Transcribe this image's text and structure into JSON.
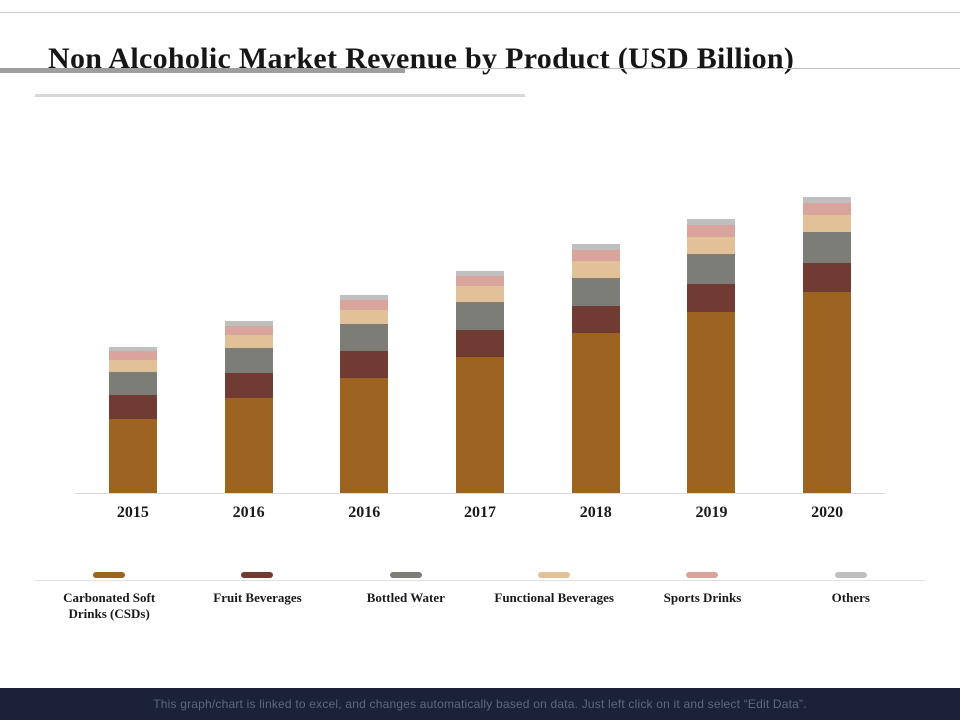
{
  "title": "Non Alcoholic Market Revenue by Product (USD Billion)",
  "footer": {
    "note": "This graph/chart is linked to excel,  and changes automatically based on data. Just left click on it and select “Edit Data”."
  },
  "chart_data": {
    "type": "bar",
    "stacked": true,
    "title": "Non Alcoholic Market Revenue by Product (USD Billion)",
    "categories": [
      "2015",
      "2016",
      "2016",
      "2017",
      "2018",
      "2019",
      "2020"
    ],
    "series": [
      {
        "name": "Carbonated Soft Drinks (CSDs)",
        "color": "#9C6420",
        "values": [
          125,
          160,
          195,
          230,
          270,
          305,
          340
        ]
      },
      {
        "name": "Fruit Beverages",
        "color": "#703B33",
        "values": [
          40,
          42,
          45,
          45,
          46,
          48,
          48
        ]
      },
      {
        "name": "Bottled Water",
        "color": "#7D7D78",
        "values": [
          40,
          42,
          45,
          48,
          48,
          50,
          52
        ]
      },
      {
        "name": "Functional Beverages",
        "color": "#E2C199",
        "values": [
          20,
          22,
          24,
          26,
          28,
          30,
          30
        ]
      },
      {
        "name": "Sports Drinks",
        "color": "#D8A49C",
        "values": [
          15,
          16,
          16,
          17,
          18,
          19,
          19
        ]
      },
      {
        "name": "Others",
        "color": "#BFBFBF",
        "values": [
          7,
          8,
          9,
          9,
          10,
          10,
          10
        ]
      }
    ],
    "xlabel": "",
    "ylabel": "",
    "ylim": [
      0,
      520
    ],
    "grid": false,
    "legend_position": "bottom"
  }
}
